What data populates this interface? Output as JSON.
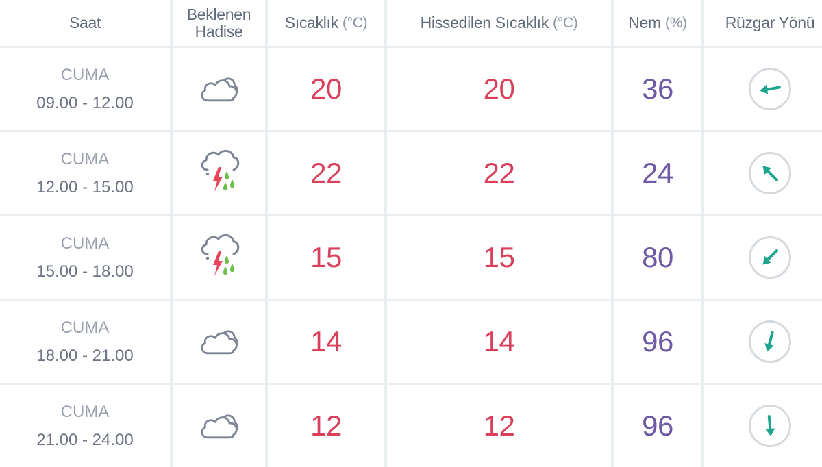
{
  "headers": {
    "time": "Saat",
    "event_line1": "Beklenen",
    "event_line2": "Hadise",
    "temp": "Sıcaklık",
    "temp_unit": "(°C)",
    "feels": "Hissedilen Sıcaklık",
    "feels_unit": "(°C)",
    "humidity": "Nem",
    "humidity_unit": "(%)",
    "wind": "Rüzgar Yönü"
  },
  "colors": {
    "temperature": "#d9405c",
    "humidity": "#6f5aa6",
    "wind_arrow": "#1fa58f",
    "rain": "#6cc04a",
    "lightning": "#e8455b"
  },
  "rows": [
    {
      "day": "CUMA",
      "time": "09.00 - 12.00",
      "icon": "cloudy-icon",
      "temp": "20",
      "feels": "20",
      "humidity": "36",
      "wind_angle_deg": 260
    },
    {
      "day": "CUMA",
      "time": "12.00 - 15.00",
      "icon": "thunderstorm-rain-icon",
      "temp": "22",
      "feels": "22",
      "humidity": "24",
      "wind_angle_deg": 315
    },
    {
      "day": "CUMA",
      "time": "15.00 - 18.00",
      "icon": "thunderstorm-rain-icon",
      "temp": "15",
      "feels": "15",
      "humidity": "80",
      "wind_angle_deg": 225
    },
    {
      "day": "CUMA",
      "time": "18.00 - 21.00",
      "icon": "cloudy-icon",
      "temp": "14",
      "feels": "14",
      "humidity": "96",
      "wind_angle_deg": 195
    },
    {
      "day": "CUMA",
      "time": "21.00 - 24.00",
      "icon": "cloudy-icon",
      "temp": "12",
      "feels": "12",
      "humidity": "96",
      "wind_angle_deg": 175
    }
  ]
}
